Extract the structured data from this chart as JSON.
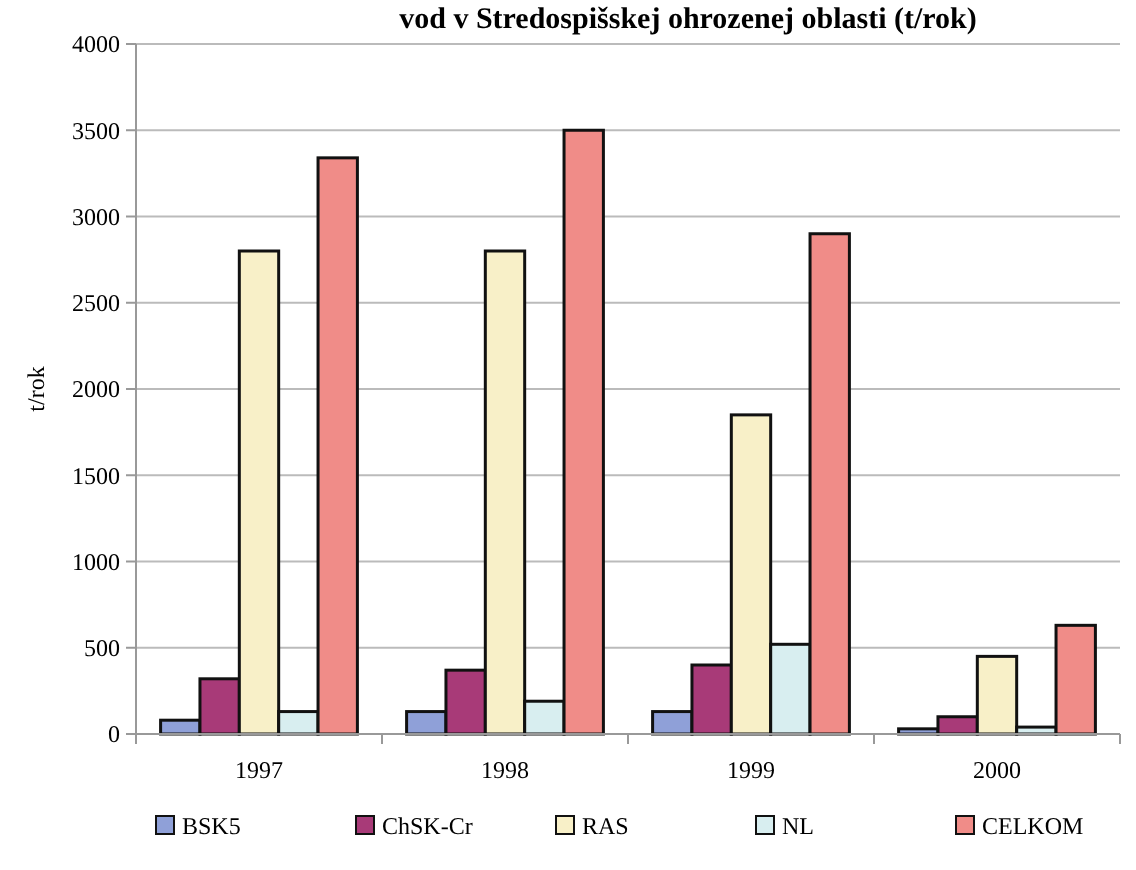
{
  "chart_data": {
    "type": "bar",
    "title": "vod v Stredospišskej ohrozenej oblasti (t/rok)",
    "ylabel": "t/rok",
    "categories": [
      "1997",
      "1998",
      "1999",
      "2000"
    ],
    "series": [
      {
        "name": "BSK5",
        "color": "#8fa0d8",
        "values": [
          80,
          130,
          130,
          30
        ]
      },
      {
        "name": "ChSK-Cr",
        "color": "#a83a78",
        "values": [
          320,
          370,
          400,
          100
        ]
      },
      {
        "name": "RAS",
        "color": "#f8f0c8",
        "values": [
          2800,
          2800,
          1850,
          450
        ]
      },
      {
        "name": "NL",
        "color": "#d8eef0",
        "values": [
          130,
          190,
          520,
          40
        ]
      },
      {
        "name": "CELKOM",
        "color": "#f08c88",
        "values": [
          3340,
          3500,
          2900,
          630
        ]
      }
    ],
    "ylim": [
      0,
      4000
    ],
    "yticks": [
      0,
      500,
      1000,
      1500,
      2000,
      2500,
      3000,
      3500,
      4000
    ],
    "grid": "y",
    "legend": "bottom"
  }
}
